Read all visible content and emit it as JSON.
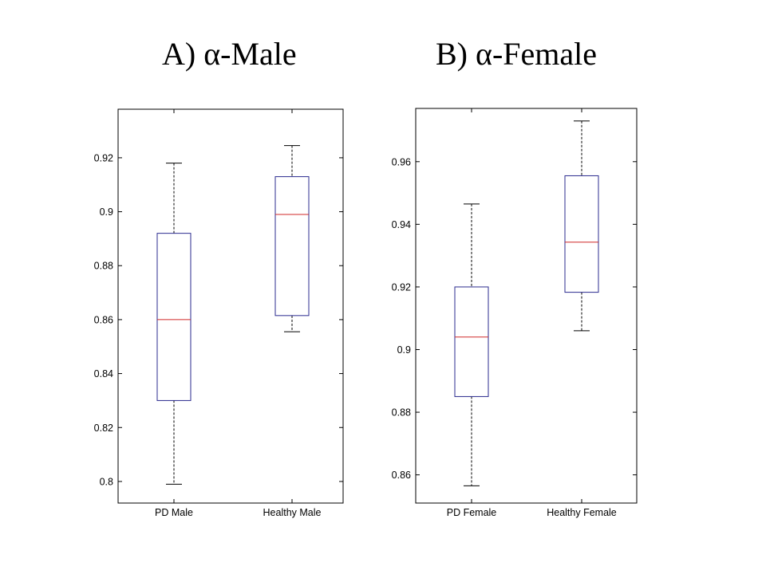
{
  "chart_data": [
    {
      "type": "box",
      "title": "A) α-Male",
      "categories": [
        "PD Male",
        "Healthy Male"
      ],
      "ylim": [
        0.792,
        0.938
      ],
      "yticks": [
        0.8,
        0.82,
        0.84,
        0.86,
        0.88,
        0.9,
        0.92
      ],
      "ytick_labels": [
        "0.8",
        "0.82",
        "0.84",
        "0.86",
        "0.88",
        "0.9",
        "0.92"
      ],
      "boxes": [
        {
          "name": "PD Male",
          "min": 0.799,
          "q1": 0.83,
          "median": 0.86,
          "q3": 0.892,
          "max": 0.918
        },
        {
          "name": "Healthy Male",
          "min": 0.8555,
          "q1": 0.8615,
          "median": 0.899,
          "q3": 0.913,
          "max": 0.9245
        }
      ]
    },
    {
      "type": "box",
      "title": "B) α-Female",
      "categories": [
        "PD Female",
        "Healthy Female"
      ],
      "ylim": [
        0.851,
        0.977
      ],
      "yticks": [
        0.86,
        0.88,
        0.9,
        0.92,
        0.94,
        0.96
      ],
      "ytick_labels": [
        "0.86",
        "0.88",
        "0.9",
        "0.92",
        "0.94",
        "0.96"
      ],
      "boxes": [
        {
          "name": "PD Female",
          "min": 0.8565,
          "q1": 0.885,
          "median": 0.904,
          "q3": 0.92,
          "max": 0.9465
        },
        {
          "name": "Healthy Female",
          "min": 0.906,
          "q1": 0.9183,
          "median": 0.9343,
          "q3": 0.9555,
          "max": 0.973
        }
      ]
    }
  ],
  "colors": {
    "box": "#2b2b8f",
    "median": "#d02828",
    "whisker": "#000000",
    "axis": "#000000"
  }
}
